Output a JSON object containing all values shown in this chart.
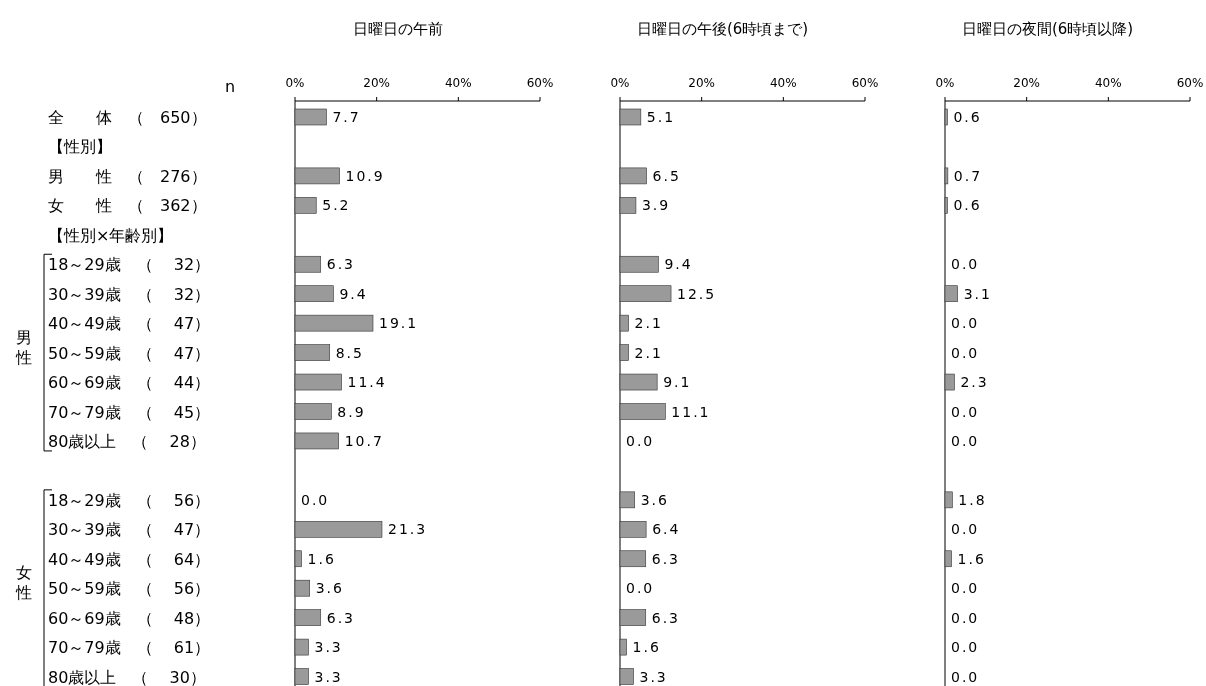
{
  "chart_data": [
    {
      "type": "bar",
      "orientation": "horizontal",
      "title": "日曜日の午前",
      "categories": [
        "全　　体　（　650）",
        "【性別】",
        "男　　性　（　276）",
        "女　　性　（　362）",
        "【性別×年齢別】",
        "18～29歳　（　 32）",
        "30～39歳　（　 32）",
        "40～49歳　（　 47）",
        "50～59歳　（　 47）",
        "60～69歳　（　 44）",
        "70～79歳　（　 45）",
        "80歳以上　（　 28）",
        null,
        "18～29歳　（　 56）",
        "30～39歳　（　 47）",
        "40～49歳　（　 64）",
        "50～59歳　（　 56）",
        "60～69歳　（　 48）",
        "70～79歳　（　 61）",
        "80歳以上　（　 30）"
      ],
      "values": [
        7.7,
        null,
        10.9,
        5.2,
        null,
        6.3,
        9.4,
        19.1,
        8.5,
        11.4,
        8.9,
        10.7,
        null,
        0.0,
        21.3,
        1.6,
        3.6,
        6.3,
        3.3,
        3.3
      ],
      "value_labels": [
        "7.7",
        null,
        "10.9",
        "5.2",
        null,
        "6.3",
        "9.4",
        "19.1",
        "8.5",
        "11.4",
        "8.9",
        "10.7",
        null,
        "0.0",
        "21.3",
        "1.6",
        "3.6",
        "6.3",
        "3.3",
        "3.3"
      ],
      "color": "#9a9a9a",
      "xlim": [
        0,
        60
      ],
      "xticks": [
        {
          "value": 0,
          "label": "0%"
        },
        {
          "value": 20,
          "label": "20%"
        },
        {
          "value": 40,
          "label": "40%"
        },
        {
          "value": 60,
          "label": "60%"
        }
      ],
      "grid": false,
      "annotations": [
        "n",
        "男性",
        "女性"
      ]
    },
    {
      "type": "bar",
      "orientation": "horizontal",
      "title": "日曜日の午後(6時頃まで)",
      "categories": [
        null,
        null,
        null,
        null,
        null,
        null,
        null,
        null,
        null,
        null,
        null,
        null,
        null,
        null,
        null,
        null,
        null,
        null,
        null,
        null
      ],
      "values": [
        5.1,
        null,
        6.5,
        3.9,
        null,
        9.4,
        12.5,
        2.1,
        2.1,
        9.1,
        11.1,
        0.0,
        null,
        3.6,
        6.4,
        6.3,
        0.0,
        6.3,
        1.6,
        3.3
      ],
      "value_labels": [
        "5.1",
        null,
        "6.5",
        "3.9",
        null,
        "9.4",
        "12.5",
        "2.1",
        "2.1",
        "9.1",
        "11.1",
        "0.0",
        null,
        "3.6",
        "6.4",
        "6.3",
        "0.0",
        "6.3",
        "1.6",
        "3.3"
      ],
      "color": "#9a9a9a",
      "xlim": [
        0,
        60
      ],
      "xticks": [
        {
          "value": 0,
          "label": "0%"
        },
        {
          "value": 20,
          "label": "20%"
        },
        {
          "value": 40,
          "label": "40%"
        },
        {
          "value": 60,
          "label": "60%"
        }
      ],
      "grid": false
    },
    {
      "type": "bar",
      "orientation": "horizontal",
      "title": "日曜日の夜間(6時頃以降)",
      "categories": [
        null,
        null,
        null,
        null,
        null,
        null,
        null,
        null,
        null,
        null,
        null,
        null,
        null,
        null,
        null,
        null,
        null,
        null,
        null,
        null
      ],
      "values": [
        0.6,
        null,
        0.7,
        0.6,
        null,
        0.0,
        3.1,
        0.0,
        0.0,
        2.3,
        0.0,
        0.0,
        null,
        1.8,
        0.0,
        1.6,
        0.0,
        0.0,
        0.0,
        0.0
      ],
      "value_labels": [
        "0.6",
        null,
        "0.7",
        "0.6",
        null,
        "0.0",
        "3.1",
        "0.0",
        "0.0",
        "2.3",
        "0.0",
        "0.0",
        null,
        "1.8",
        "0.0",
        "1.6",
        "0.0",
        "0.0",
        "0.0",
        "0.0"
      ],
      "color": "#9a9a9a",
      "xlim": [
        0,
        60
      ],
      "xticks": [
        {
          "value": 0,
          "label": "0%"
        },
        {
          "value": 20,
          "label": "20%"
        },
        {
          "value": 40,
          "label": "40%"
        },
        {
          "value": 60,
          "label": "60%"
        }
      ],
      "grid": false
    }
  ]
}
